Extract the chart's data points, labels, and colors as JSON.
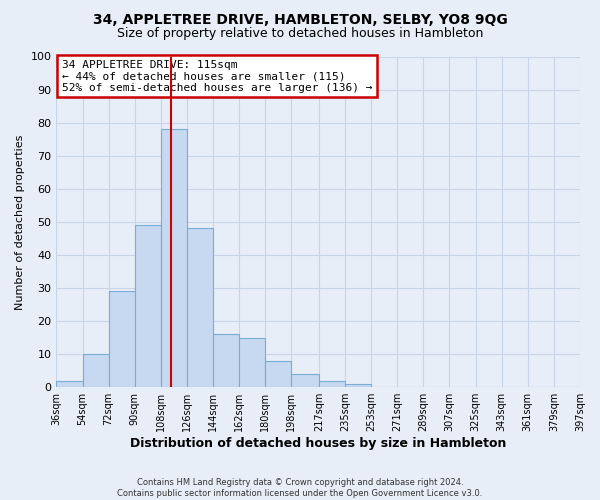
{
  "title": "34, APPLETREE DRIVE, HAMBLETON, SELBY, YO8 9QG",
  "subtitle": "Size of property relative to detached houses in Hambleton",
  "xlabel": "Distribution of detached houses by size in Hambleton",
  "ylabel": "Number of detached properties",
  "footer_line1": "Contains HM Land Registry data © Crown copyright and database right 2024.",
  "footer_line2": "Contains public sector information licensed under the Open Government Licence v3.0.",
  "bin_edges": [
    36,
    54,
    72,
    90,
    108,
    126,
    144,
    162,
    180,
    198,
    217,
    235,
    253,
    271,
    289,
    307,
    325,
    343,
    361,
    379,
    397
  ],
  "bin_counts": [
    2,
    10,
    29,
    49,
    78,
    48,
    16,
    15,
    8,
    4,
    2,
    1,
    0,
    0,
    0,
    0,
    0,
    0,
    0,
    0
  ],
  "bar_color": "#c6d9f0",
  "bar_edge_color": "#7aadd4",
  "property_value": 115,
  "vline_color": "#cc0000",
  "annotation_title": "34 APPLETREE DRIVE: 115sqm",
  "annotation_line1": "← 44% of detached houses are smaller (115)",
  "annotation_line2": "52% of semi-detached houses are larger (136) →",
  "annotation_box_color": "#ffffff",
  "annotation_box_edge": "#cc0000",
  "ylim": [
    0,
    100
  ],
  "tick_labels": [
    "36sqm",
    "54sqm",
    "72sqm",
    "90sqm",
    "108sqm",
    "126sqm",
    "144sqm",
    "162sqm",
    "180sqm",
    "198sqm",
    "217sqm",
    "235sqm",
    "253sqm",
    "271sqm",
    "289sqm",
    "307sqm",
    "325sqm",
    "343sqm",
    "361sqm",
    "379sqm",
    "397sqm"
  ],
  "grid_color": "#c8d4e8",
  "background_color": "#e8eef8",
  "plot_bg_color": "#e8eef8"
}
